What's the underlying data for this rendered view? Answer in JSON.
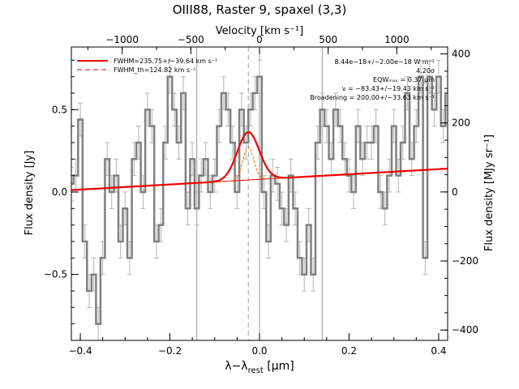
{
  "chart_data": {
    "type": "line",
    "title": "OIII88, Raster 9, spaxel (3,3)",
    "top_axis_label": "Velocity [km s⁻¹]",
    "xlabel": "λ−λ_rest [μm]",
    "xlabel_main": "λ−λ",
    "xlabel_sub": "rest",
    "xlabel_unit": " [μm]",
    "ylabel": "Flux density [Jy]",
    "right_ylabel": "Flux density [MJy sr⁻¹]",
    "xlim": [
      -0.42,
      0.42
    ],
    "ylim": [
      -0.9,
      0.88
    ],
    "right_ylim": [
      -430,
      420
    ],
    "velocity_lim": [
      -1370,
      1370
    ],
    "x_ticks": [
      -0.4,
      -0.2,
      0.0,
      0.2,
      0.4
    ],
    "x_tick_labels": [
      "−0.4",
      "−0.2",
      "0.0",
      "0.2",
      "0.4"
    ],
    "y_ticks": [
      -0.5,
      0.0,
      0.5
    ],
    "y_tick_labels": [
      "−0.5",
      "0.0",
      "0.5"
    ],
    "right_ticks": [
      -400,
      -200,
      0,
      200,
      400
    ],
    "right_tick_labels": [
      "−400",
      "−200",
      "0",
      "200",
      "400"
    ],
    "velocity_ticks": [
      -1000,
      -500,
      0,
      500,
      1000
    ],
    "velocity_tick_labels": [
      "−1000",
      "−500",
      "0",
      "500",
      "1000"
    ],
    "vertical_lines": [
      -0.14,
      0.0,
      0.14
    ],
    "dashed_vertical_line": -0.025,
    "legend": [
      {
        "label": "FWHM=235.75+/−39.64 km s⁻¹",
        "style": "solid",
        "color": "#ee0000"
      },
      {
        "label": "FWHM_th=124.82 km s⁻¹",
        "style": "dashed",
        "color": "#ee0000"
      }
    ],
    "annotations": [
      "8.44e−18+/−2.00e−18 W m⁻²",
      "4.20σ",
      "EQWₘₐₓ = 0.37 μm",
      "v = −83.43+/−19.43 km s⁻¹",
      "Broadening = 200.00+/−33.63 km s⁻¹"
    ],
    "continuum": {
      "slope": 0.155,
      "intercept": 0.077
    },
    "gaussian_fit": {
      "center": -0.025,
      "amplitude": 0.29,
      "sigma": 0.0245
    },
    "thermal_profile": {
      "center": -0.025,
      "amplitude": 0.2,
      "sigma": 0.012
    },
    "spectrum": {
      "color": "#808080",
      "errorbar_color": "#b4b4b4",
      "fit_color": "#ee0000",
      "thermal_color": "#ff6a00",
      "x": [
        -0.42,
        -0.41,
        -0.4,
        -0.39,
        -0.38,
        -0.37,
        -0.36,
        -0.35,
        -0.34,
        -0.33,
        -0.32,
        -0.31,
        -0.3,
        -0.29,
        -0.28,
        -0.27,
        -0.26,
        -0.25,
        -0.24,
        -0.23,
        -0.22,
        -0.21,
        -0.2,
        -0.19,
        -0.18,
        -0.17,
        -0.16,
        -0.15,
        -0.14,
        -0.13,
        -0.12,
        -0.11,
        -0.1,
        -0.09,
        -0.08,
        -0.07,
        -0.06,
        -0.05,
        -0.04,
        -0.03,
        -0.02,
        -0.01,
        0.0,
        0.01,
        0.02,
        0.03,
        0.04,
        0.05,
        0.06,
        0.07,
        0.08,
        0.09,
        0.1,
        0.11,
        0.12,
        0.13,
        0.14,
        0.15,
        0.16,
        0.17,
        0.18,
        0.19,
        0.2,
        0.21,
        0.22,
        0.23,
        0.24,
        0.25,
        0.26,
        0.27,
        0.28,
        0.29,
        0.3,
        0.31,
        0.32,
        0.33,
        0.34,
        0.35,
        0.36,
        0.37,
        0.38,
        0.39,
        0.4,
        0.41,
        0.42
      ],
      "y": [
        0.05,
        0.1,
        0.44,
        -0.3,
        -0.6,
        -0.5,
        -0.8,
        -0.4,
        0.2,
        0.0,
        0.1,
        -0.3,
        -0.1,
        -0.4,
        0.2,
        0.3,
        0.0,
        0.5,
        0.4,
        -0.3,
        -0.2,
        0.3,
        0.7,
        0.5,
        0.3,
        0.6,
        -0.1,
        0.2,
        -0.1,
        0.1,
        0.2,
        0.0,
        0.1,
        0.4,
        0.6,
        0.5,
        0.3,
        0.0,
        0.5,
        0.3,
        0.5,
        0.6,
        0.7,
        0.0,
        -0.3,
        0.1,
        0.05,
        -0.1,
        -0.2,
        0.1,
        -0.1,
        -0.4,
        -0.5,
        -0.2,
        -0.5,
        0.3,
        0.5,
        0.4,
        0.2,
        0.5,
        0.4,
        0.2,
        0.1,
        0.0,
        0.4,
        0.2,
        0.3,
        0.3,
        0.4,
        0.0,
        -0.1,
        0.1,
        0.4,
        0.1,
        0.3,
        0.6,
        0.2,
        0.4,
        0.7,
        -0.4,
        0.7,
        0.5,
        0.7,
        0.4,
        0.6
      ],
      "error": 0.1
    }
  }
}
